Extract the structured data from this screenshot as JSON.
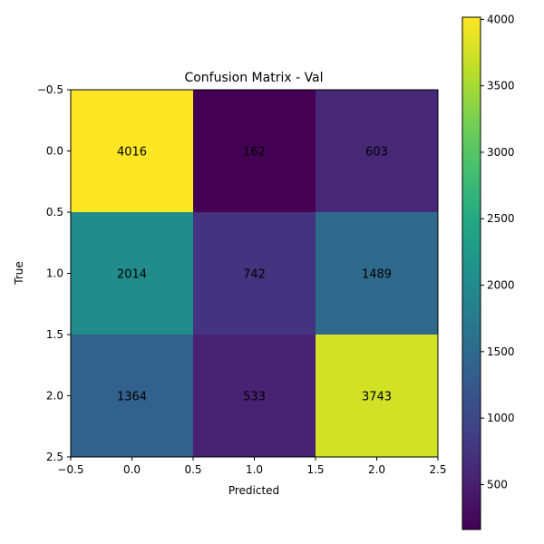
{
  "chart_data": {
    "type": "heatmap",
    "title": "Confusion Matrix - Val",
    "xlabel": "Predicted",
    "ylabel": "True",
    "x_ticks": [
      "−0.5",
      "0.0",
      "0.5",
      "1.0",
      "1.5",
      "2.0",
      "2.5"
    ],
    "y_ticks": [
      "−0.5",
      "0.0",
      "0.5",
      "1.0",
      "1.5",
      "2.0",
      "2.5"
    ],
    "xlim": [
      -0.5,
      2.5
    ],
    "ylim": [
      2.5,
      -0.5
    ],
    "matrix": [
      [
        4016,
        162,
        603
      ],
      [
        2014,
        742,
        1489
      ],
      [
        1364,
        533,
        3743
      ]
    ],
    "colormap": "viridis",
    "colorbar": {
      "range": [
        162,
        4016
      ],
      "ticks": [
        "500",
        "1000",
        "1500",
        "2000",
        "2500",
        "3000",
        "3500",
        "4000"
      ],
      "tick_values": [
        500,
        1000,
        1500,
        2000,
        2500,
        3000,
        3500,
        4000
      ]
    }
  }
}
